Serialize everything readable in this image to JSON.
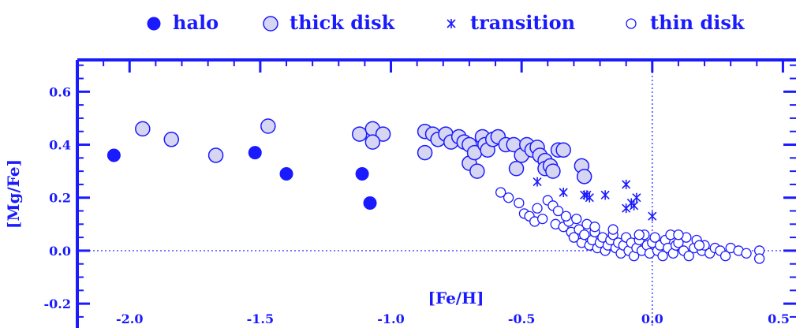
{
  "chart_data": {
    "type": "scatter",
    "xlabel": "[Fe/H]",
    "ylabel": "[Mg/Fe]",
    "xlim": [
      -2.2,
      0.55
    ],
    "ylim": [
      -0.28,
      0.72
    ],
    "x_ticks": [
      "-2.0",
      "-1.5",
      "-1.0",
      "-0.5",
      "0.0",
      "0.5"
    ],
    "y_ticks": [
      "0.6",
      "0.4",
      "0.2",
      "0.0",
      "-0.2"
    ],
    "reference_lines": {
      "x": 0.0,
      "y": 0.0
    },
    "grid": false,
    "legend_position": "top",
    "colors": {
      "accent": "#1a1aff",
      "thick_fill": "#d6d6f2"
    },
    "series": [
      {
        "name": "halo",
        "marker": "filled-circle",
        "points": [
          [
            -2.06,
            0.36
          ],
          [
            -1.52,
            0.37
          ],
          [
            -1.4,
            0.29
          ],
          [
            -1.11,
            0.29
          ],
          [
            -1.08,
            0.18
          ]
        ]
      },
      {
        "name": "thick disk",
        "marker": "shaded-circle",
        "points": [
          [
            -1.95,
            0.46
          ],
          [
            -1.84,
            0.42
          ],
          [
            -1.67,
            0.36
          ],
          [
            -1.47,
            0.47
          ],
          [
            -1.12,
            0.44
          ],
          [
            -1.07,
            0.46
          ],
          [
            -1.03,
            0.44
          ],
          [
            -1.07,
            0.41
          ],
          [
            -0.87,
            0.45
          ],
          [
            -0.87,
            0.37
          ],
          [
            -0.84,
            0.44
          ],
          [
            -0.82,
            0.42
          ],
          [
            -0.79,
            0.44
          ],
          [
            -0.77,
            0.41
          ],
          [
            -0.74,
            0.43
          ],
          [
            -0.72,
            0.41
          ],
          [
            -0.7,
            0.4
          ],
          [
            -0.7,
            0.33
          ],
          [
            -0.68,
            0.37
          ],
          [
            -0.67,
            0.3
          ],
          [
            -0.65,
            0.43
          ],
          [
            -0.64,
            0.4
          ],
          [
            -0.63,
            0.38
          ],
          [
            -0.61,
            0.42
          ],
          [
            -0.59,
            0.43
          ],
          [
            -0.56,
            0.4
          ],
          [
            -0.53,
            0.4
          ],
          [
            -0.52,
            0.31
          ],
          [
            -0.5,
            0.36
          ],
          [
            -0.48,
            0.4
          ],
          [
            -0.46,
            0.38
          ],
          [
            -0.44,
            0.39
          ],
          [
            -0.43,
            0.36
          ],
          [
            -0.41,
            0.34
          ],
          [
            -0.41,
            0.31
          ],
          [
            -0.39,
            0.32
          ],
          [
            -0.38,
            0.3
          ],
          [
            -0.36,
            0.38
          ],
          [
            -0.34,
            0.38
          ],
          [
            -0.27,
            0.32
          ],
          [
            -0.26,
            0.28
          ]
        ]
      },
      {
        "name": "transition",
        "marker": "asterisk",
        "points": [
          [
            -0.44,
            0.26
          ],
          [
            -0.34,
            0.22
          ],
          [
            -0.26,
            0.21
          ],
          [
            -0.25,
            0.21
          ],
          [
            -0.24,
            0.2
          ],
          [
            -0.18,
            0.21
          ],
          [
            -0.1,
            0.25
          ],
          [
            -0.08,
            0.18
          ],
          [
            -0.06,
            0.2
          ],
          [
            -0.1,
            0.16
          ],
          [
            -0.07,
            0.17
          ],
          [
            0.0,
            0.13
          ]
        ]
      },
      {
        "name": "thin disk",
        "marker": "open-circle",
        "points": [
          [
            -0.58,
            0.22
          ],
          [
            -0.55,
            0.2
          ],
          [
            -0.51,
            0.18
          ],
          [
            -0.49,
            0.14
          ],
          [
            -0.47,
            0.13
          ],
          [
            -0.45,
            0.11
          ],
          [
            -0.42,
            0.12
          ],
          [
            -0.4,
            0.19
          ],
          [
            -0.38,
            0.17
          ],
          [
            -0.37,
            0.1
          ],
          [
            -0.36,
            0.15
          ],
          [
            -0.34,
            0.09
          ],
          [
            -0.32,
            0.11
          ],
          [
            -0.31,
            0.07
          ],
          [
            -0.3,
            0.05
          ],
          [
            -0.29,
            0.12
          ],
          [
            -0.28,
            0.08
          ],
          [
            -0.27,
            0.03
          ],
          [
            -0.26,
            0.06
          ],
          [
            -0.25,
            0.1
          ],
          [
            -0.24,
            0.02
          ],
          [
            -0.23,
            0.04
          ],
          [
            -0.22,
            0.07
          ],
          [
            -0.21,
            0.01
          ],
          [
            -0.2,
            0.03
          ],
          [
            -0.19,
            0.05
          ],
          [
            -0.18,
            0.0
          ],
          [
            -0.17,
            0.02
          ],
          [
            -0.16,
            0.04
          ],
          [
            -0.15,
            0.06
          ],
          [
            -0.14,
            0.01
          ],
          [
            -0.13,
            0.03
          ],
          [
            -0.12,
            -0.01
          ],
          [
            -0.11,
            0.02
          ],
          [
            -0.1,
            0.05
          ],
          [
            -0.09,
            0.0
          ],
          [
            -0.08,
            0.03
          ],
          [
            -0.07,
            -0.02
          ],
          [
            -0.06,
            0.01
          ],
          [
            -0.05,
            0.04
          ],
          [
            -0.04,
            0.0
          ],
          [
            -0.03,
            0.06
          ],
          [
            -0.02,
            0.02
          ],
          [
            -0.01,
            -0.01
          ],
          [
            0.0,
            0.03
          ],
          [
            0.01,
            0.05
          ],
          [
            0.02,
            0.0
          ],
          [
            0.03,
            0.02
          ],
          [
            0.04,
            -0.02
          ],
          [
            0.05,
            0.04
          ],
          [
            0.06,
            0.01
          ],
          [
            0.07,
            0.06
          ],
          [
            0.08,
            -0.01
          ],
          [
            0.09,
            0.02
          ],
          [
            0.1,
            0.03
          ],
          [
            0.12,
            0.0
          ],
          [
            0.13,
            0.05
          ],
          [
            0.14,
            -0.02
          ],
          [
            0.16,
            0.01
          ],
          [
            0.17,
            0.04
          ],
          [
            0.19,
            0.0
          ],
          [
            0.2,
            0.02
          ],
          [
            0.22,
            -0.01
          ],
          [
            0.24,
            0.01
          ],
          [
            0.26,
            0.0
          ],
          [
            0.28,
            -0.02
          ],
          [
            0.3,
            0.01
          ],
          [
            0.33,
            0.0
          ],
          [
            0.36,
            -0.01
          ],
          [
            0.41,
            0.0
          ],
          [
            0.41,
            -0.03
          ],
          [
            -0.44,
            0.16
          ],
          [
            -0.33,
            0.13
          ],
          [
            -0.22,
            0.09
          ],
          [
            -0.15,
            0.08
          ],
          [
            -0.05,
            0.06
          ],
          [
            0.1,
            0.06
          ],
          [
            0.18,
            0.02
          ]
        ]
      }
    ]
  }
}
